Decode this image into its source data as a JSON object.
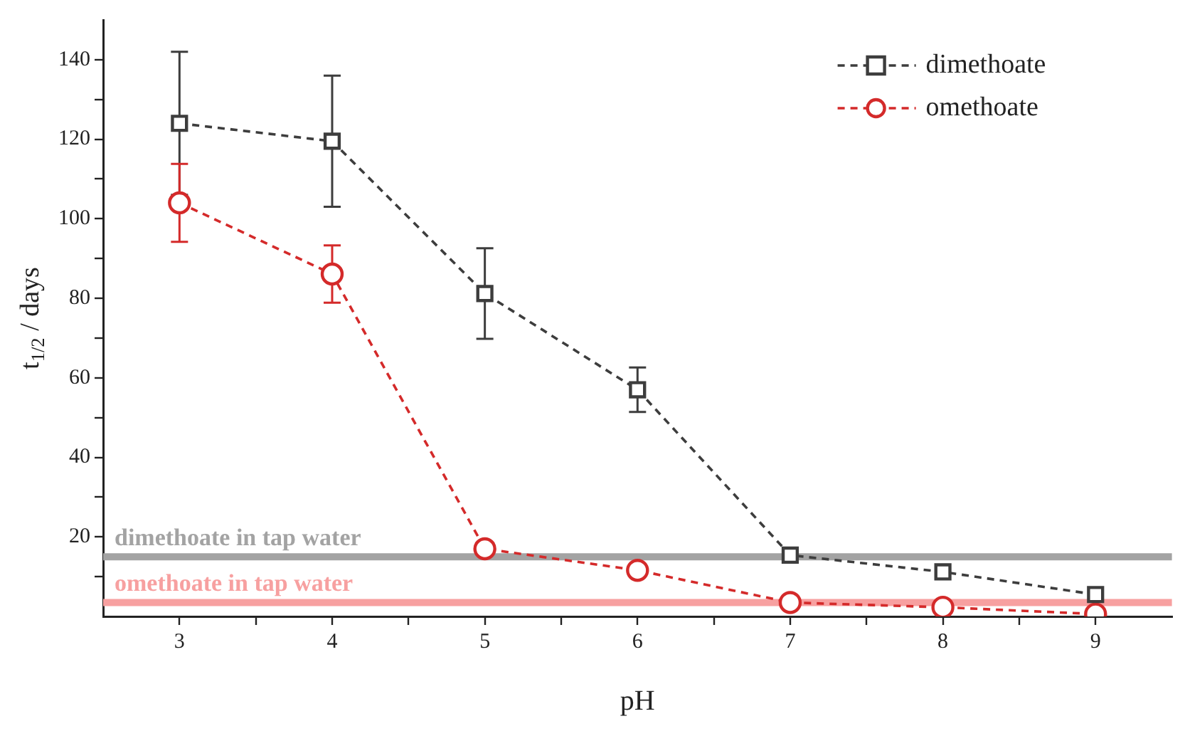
{
  "chart_data": {
    "type": "line",
    "xlabel": "pH",
    "ylabel": "t$_{1/2}$ / days",
    "xlim": [
      2.5,
      9.5
    ],
    "xticks": [
      3,
      {
        "value": 3.5,
        "label": null
      },
      4,
      {
        "value": 4.5,
        "label": null
      },
      5,
      {
        "value": 5.5,
        "label": null
      },
      6,
      {
        "value": 6.5,
        "label": null
      },
      7,
      {
        "value": 7.5,
        "label": null
      },
      8,
      {
        "value": 8.5,
        "label": null
      },
      9
    ],
    "ylim": [
      0,
      150
    ],
    "yticks": [
      {
        "value": 10,
        "label": null
      },
      20,
      {
        "value": 30,
        "label": null
      },
      40,
      {
        "value": 50,
        "label": null
      },
      60,
      {
        "value": 70,
        "label": null
      },
      80,
      {
        "value": 90,
        "label": null
      },
      100,
      {
        "value": 110,
        "label": null
      },
      120,
      {
        "value": 130,
        "label": null
      },
      140
    ],
    "x": [
      3,
      4,
      5,
      6,
      7,
      8,
      9
    ],
    "series": [
      {
        "name": "dimethoate",
        "color": "#3d3d3d",
        "marker": "square",
        "values": [
          124,
          119.5,
          81.2,
          57,
          15.4,
          11.2,
          5.5
        ],
        "errors": [
          18,
          16.5,
          11.4,
          5.6,
          null,
          null,
          null
        ]
      },
      {
        "name": "omethoate",
        "color": "#d42a2a",
        "marker": "circle",
        "values": [
          104,
          86.1,
          17,
          11.6,
          3.5,
          2.3,
          0.6
        ],
        "errors": [
          9.8,
          7.2,
          null,
          null,
          null,
          null,
          null
        ]
      }
    ],
    "ref_lines": [
      {
        "axis": "y",
        "value": 15,
        "label": "dimethoate in tap water",
        "color": "#a3a3a3"
      },
      {
        "axis": "y",
        "value": 3.5,
        "label": "omethoate in tap water",
        "color": "#f7a0a0"
      }
    ],
    "line_style": "dashed",
    "grid": false,
    "legend": "top right"
  }
}
